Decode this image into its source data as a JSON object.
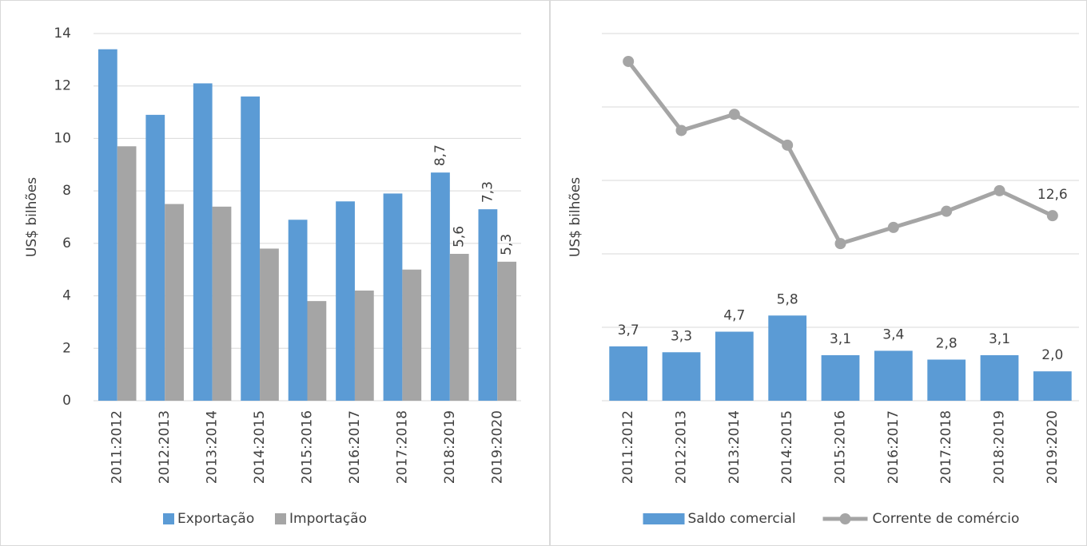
{
  "chart_data": [
    {
      "type": "bar",
      "y_label": "US$ bilhões",
      "categories": [
        "2011:2012",
        "2012:2013",
        "2013:2014",
        "2014:2015",
        "2015:2016",
        "2016:2017",
        "2017:2018",
        "2018:2019",
        "2019:2020"
      ],
      "series": [
        {
          "name": "Exportação",
          "color": "#5b9bd5",
          "values": [
            13.4,
            10.9,
            12.1,
            11.6,
            6.9,
            7.6,
            7.9,
            8.7,
            7.3
          ],
          "value_labels": [
            null,
            null,
            null,
            null,
            null,
            null,
            null,
            "8,7",
            "7,3"
          ]
        },
        {
          "name": "Importação",
          "color": "#a5a5a5",
          "values": [
            9.7,
            7.5,
            7.4,
            5.8,
            3.8,
            4.2,
            5.0,
            5.6,
            5.3
          ],
          "value_labels": [
            null,
            null,
            null,
            null,
            null,
            null,
            null,
            "5,6",
            "5,3"
          ]
        }
      ],
      "ylim": [
        0,
        14
      ],
      "yticks": [
        0,
        2,
        4,
        6,
        8,
        10,
        12,
        14
      ],
      "grid": true,
      "tick_labels": true,
      "legend": "bottom"
    },
    {
      "type": "combo",
      "y_label": "US$ bilhões",
      "categories": [
        "2011:2012",
        "2012:2013",
        "2013:2014",
        "2014:2015",
        "2015:2016",
        "2016:2017",
        "2017:2018",
        "2018:2019",
        "2019:2020"
      ],
      "series": [
        {
          "name": "Saldo comercial",
          "type": "bar",
          "color": "#5b9bd5",
          "values": [
            3.7,
            3.3,
            4.7,
            5.8,
            3.1,
            3.4,
            2.8,
            3.1,
            2.0
          ],
          "value_labels": [
            "3,7",
            "3,3",
            "4,7",
            "5,8",
            "3,1",
            "3,4",
            "2,8",
            "3,1",
            "2,0"
          ]
        },
        {
          "name": "Corrente de comércio",
          "type": "line",
          "color": "#a5a5a5",
          "values": [
            23.1,
            18.4,
            19.5,
            17.4,
            10.7,
            11.8,
            12.9,
            14.3,
            12.6
          ],
          "value_labels": [
            null,
            null,
            null,
            null,
            null,
            null,
            null,
            null,
            "12,6"
          ]
        }
      ],
      "ylim": [
        0,
        25
      ],
      "yticks": [
        0,
        5,
        10,
        15,
        20,
        25
      ],
      "grid": true,
      "tick_labels": false,
      "legend": "bottom"
    }
  ]
}
